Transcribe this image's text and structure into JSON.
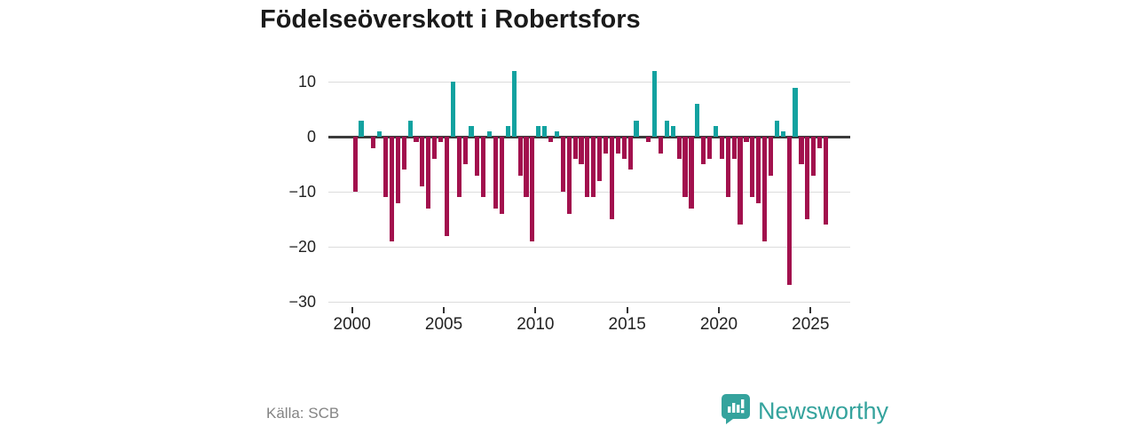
{
  "title": "Födelseöverskott i Robertsfors",
  "source": "Källa: SCB",
  "brand": {
    "name": "Newsworthy",
    "color": "#35a39d"
  },
  "chart_data": {
    "type": "bar",
    "title": "Födelseöverskott i Robertsfors",
    "xlabel": "",
    "ylabel": "",
    "frequency": "tertial (3 per year)",
    "x_start": "2000T1",
    "x_end": "2025T3",
    "values": [
      -10,
      3,
      0,
      -2,
      1,
      -11,
      -19,
      -12,
      -6,
      3,
      -1,
      -9,
      -13,
      -4,
      -1,
      -18,
      10,
      -11,
      -5,
      2,
      -7,
      -11,
      1,
      -13,
      -14,
      2,
      12,
      -7,
      -11,
      -19,
      2,
      2,
      -1,
      1,
      -10,
      -14,
      -4,
      -5,
      -11,
      -11,
      -8,
      -3,
      -15,
      -3,
      -4,
      -6,
      3,
      0,
      -1,
      12,
      -3,
      3,
      2,
      -4,
      -11,
      -13,
      6,
      -5,
      -4,
      2,
      -4,
      -11,
      -4,
      -16,
      -1,
      -11,
      -12,
      -19,
      -7,
      3,
      1,
      -27,
      9,
      -5,
      -15,
      -7,
      -2,
      -16
    ],
    "y_ticks": [
      10,
      0,
      -10,
      -20,
      -30
    ],
    "x_ticks": [
      2000,
      2005,
      2010,
      2015,
      2020,
      2025
    ],
    "ylim": [
      -30.8,
      13.6
    ],
    "grid": true,
    "legend": false,
    "colors": {
      "positive": "#12a2a0",
      "negative": "#a2104d",
      "zero_line": "#3b3b3b",
      "grid": "#dcdcdc"
    }
  }
}
